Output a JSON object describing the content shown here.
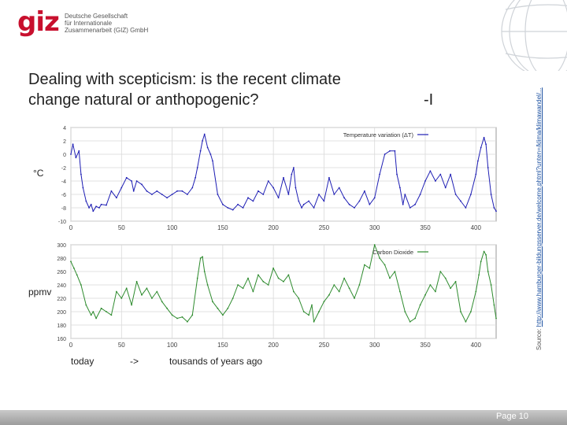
{
  "logo": {
    "wordmark": "giz",
    "lines": [
      "Deutsche Gesellschaft",
      "für Internationale",
      "Zusammenarbeit (GIZ) GmbH"
    ]
  },
  "slide": {
    "title_line1": "Dealing with scepticism: is the recent climate",
    "title_line2": "change natural or anthopogenic?",
    "title_suffix": "-I",
    "source_prefix": "Source: ",
    "source_url": "http://www.hamburger-bildungsserver.de/welcome.phtml?unten=/klima/klimawandel/...",
    "unit_temp": "°C",
    "unit_co2": "ppmv",
    "label_today": "today",
    "label_arrow": "->",
    "label_thousands": "tousands of years ago",
    "page": "Page 10"
  },
  "colors": {
    "temperature": "#1f1fb4",
    "co2": "#2e8b2e",
    "brand": "#c8102e"
  },
  "chart_data": [
    {
      "type": "line",
      "name": "Temperature variation (ΔT)",
      "legend": "Temperature variation (ΔT)",
      "xlabel": "",
      "ylabel": "°C",
      "xlim": [
        0,
        420
      ],
      "ylim": [
        -10,
        4
      ],
      "xticks": [
        0,
        50,
        100,
        150,
        200,
        250,
        300,
        350,
        400
      ],
      "yticks": [
        4,
        2,
        0,
        -2,
        -4,
        -6,
        -8,
        -10
      ],
      "grid": true,
      "x": [
        0,
        2,
        5,
        8,
        10,
        12,
        15,
        18,
        20,
        22,
        25,
        28,
        30,
        35,
        40,
        45,
        50,
        55,
        60,
        62,
        65,
        70,
        75,
        80,
        85,
        90,
        95,
        100,
        105,
        110,
        115,
        120,
        123,
        125,
        128,
        130,
        132,
        135,
        138,
        140,
        145,
        150,
        155,
        160,
        165,
        170,
        175,
        180,
        185,
        190,
        195,
        200,
        205,
        210,
        215,
        218,
        220,
        222,
        225,
        228,
        230,
        235,
        240,
        245,
        250,
        255,
        260,
        265,
        270,
        275,
        280,
        285,
        290,
        295,
        300,
        305,
        310,
        315,
        320,
        322,
        325,
        328,
        330,
        335,
        340,
        345,
        350,
        355,
        360,
        365,
        370,
        375,
        380,
        385,
        390,
        395,
        400,
        402,
        405,
        408,
        410,
        412,
        415,
        418,
        420
      ],
      "values": [
        0,
        1.5,
        -0.5,
        0.5,
        -3,
        -5,
        -7,
        -8,
        -7.5,
        -8.5,
        -7.8,
        -8,
        -7.5,
        -7.6,
        -5.5,
        -6.5,
        -5,
        -3.5,
        -4,
        -5.5,
        -4,
        -4.5,
        -5.5,
        -6,
        -5.5,
        -6,
        -6.5,
        -6,
        -5.5,
        -5.5,
        -6,
        -5,
        -3.5,
        -2,
        0.5,
        2,
        3,
        1,
        0,
        -1,
        -6,
        -7.5,
        -8,
        -8.3,
        -7.5,
        -8,
        -6.5,
        -7,
        -5.5,
        -6,
        -4,
        -5,
        -6.5,
        -3.5,
        -6,
        -3,
        -2,
        -5,
        -7,
        -8,
        -7.5,
        -7,
        -8,
        -6,
        -7,
        -3.5,
        -6,
        -5,
        -6.5,
        -7.5,
        -8,
        -7,
        -5.5,
        -7.5,
        -6.5,
        -3,
        0,
        0.5,
        0.5,
        -3,
        -5,
        -7.5,
        -6,
        -8,
        -7.5,
        -6,
        -4,
        -2.5,
        -4,
        -3,
        -5,
        -3,
        -6,
        -7,
        -8,
        -6,
        -3,
        -1,
        1,
        2.5,
        1.5,
        -2,
        -6,
        -8,
        -8.5
      ]
    },
    {
      "type": "line",
      "name": "Carbon Dioxide",
      "legend": "Carbon Dioxide",
      "xlabel": "",
      "ylabel": "ppmv",
      "xlim": [
        0,
        420
      ],
      "ylim": [
        160,
        300
      ],
      "xticks": [
        0,
        50,
        100,
        150,
        200,
        250,
        300,
        350,
        400
      ],
      "yticks": [
        300,
        280,
        260,
        240,
        220,
        200,
        180,
        160
      ],
      "grid": true,
      "x": [
        0,
        3,
        6,
        10,
        15,
        20,
        22,
        25,
        30,
        35,
        40,
        45,
        50,
        55,
        60,
        65,
        70,
        75,
        80,
        85,
        90,
        95,
        100,
        105,
        110,
        115,
        120,
        125,
        128,
        130,
        132,
        135,
        140,
        145,
        150,
        155,
        160,
        165,
        170,
        175,
        180,
        185,
        190,
        195,
        200,
        205,
        210,
        215,
        220,
        225,
        230,
        235,
        238,
        240,
        245,
        250,
        255,
        260,
        265,
        270,
        275,
        280,
        285,
        290,
        295,
        300,
        305,
        310,
        315,
        320,
        325,
        330,
        335,
        340,
        345,
        350,
        355,
        360,
        365,
        370,
        375,
        380,
        385,
        390,
        395,
        400,
        403,
        405,
        408,
        410,
        412,
        415,
        418,
        420
      ],
      "values": [
        275,
        265,
        255,
        240,
        210,
        195,
        200,
        190,
        205,
        200,
        195,
        230,
        220,
        235,
        210,
        245,
        225,
        235,
        220,
        230,
        215,
        205,
        195,
        190,
        192,
        185,
        195,
        250,
        280,
        282,
        260,
        240,
        215,
        205,
        195,
        205,
        220,
        240,
        235,
        250,
        230,
        255,
        245,
        240,
        265,
        250,
        245,
        255,
        230,
        220,
        200,
        195,
        210,
        185,
        200,
        215,
        225,
        240,
        230,
        250,
        235,
        220,
        240,
        270,
        265,
        300,
        280,
        270,
        250,
        260,
        230,
        200,
        185,
        190,
        210,
        225,
        240,
        230,
        260,
        250,
        235,
        245,
        200,
        185,
        200,
        230,
        255,
        275,
        290,
        285,
        260,
        240,
        210,
        190
      ]
    }
  ]
}
